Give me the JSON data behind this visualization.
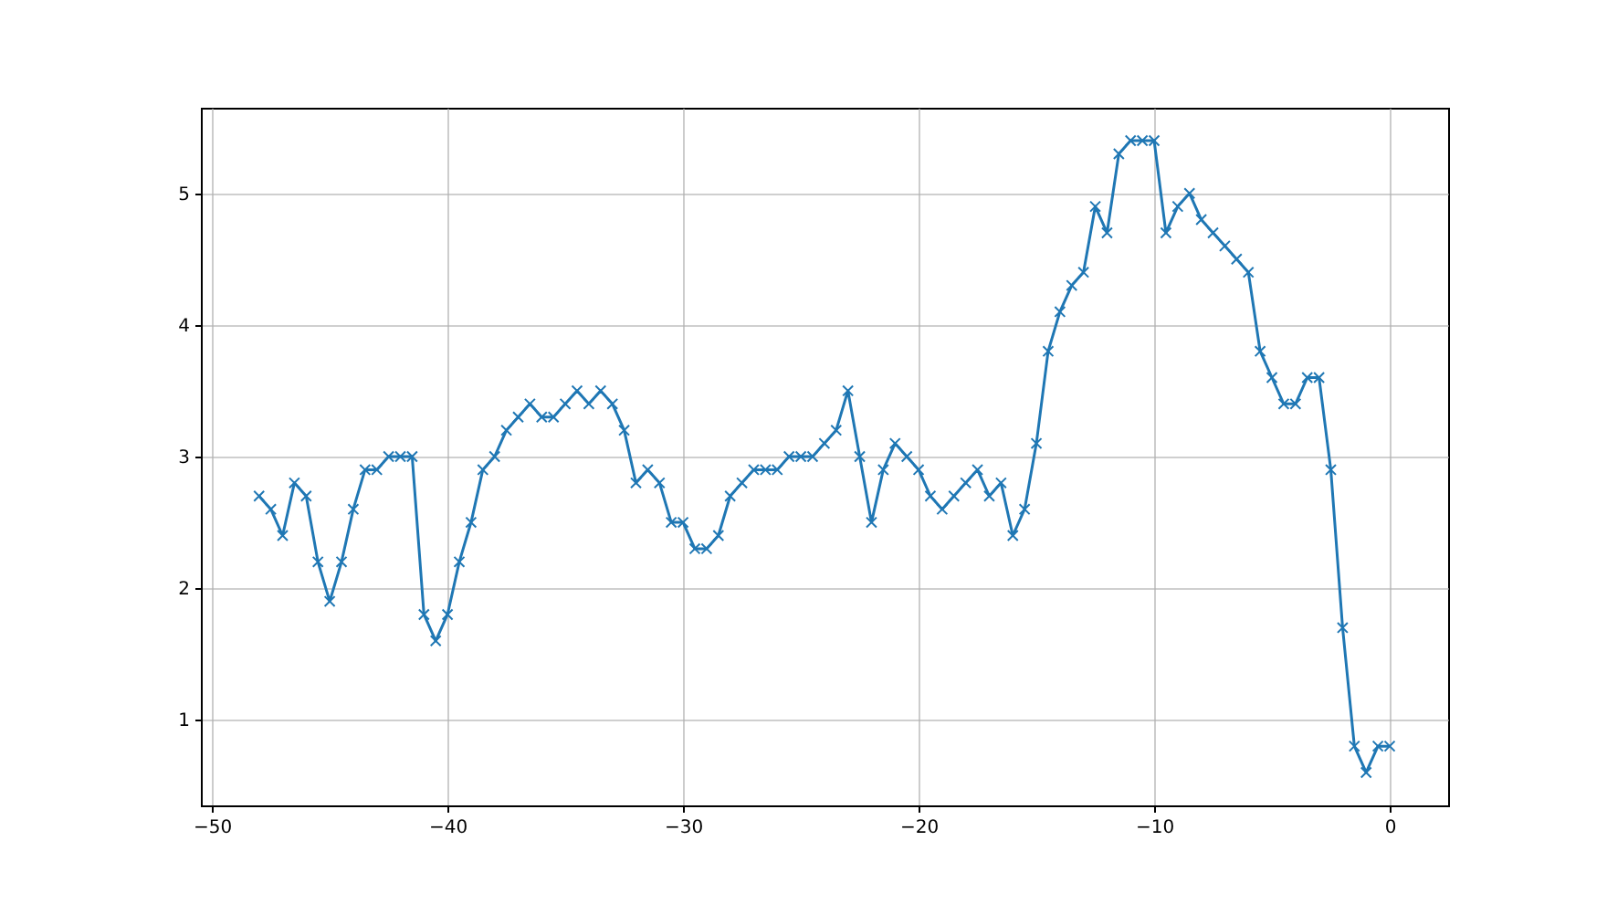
{
  "chart_data": {
    "type": "line",
    "x": [
      -48,
      -47.5,
      -47,
      -46.5,
      -46,
      -45.5,
      -45,
      -44.5,
      -44,
      -43.5,
      -43,
      -42.5,
      -42,
      -41.5,
      -41,
      -40.5,
      -40,
      -39.5,
      -39,
      -38.5,
      -38,
      -37.5,
      -37,
      -36.5,
      -36,
      -35.5,
      -35,
      -34.5,
      -34,
      -33.5,
      -33,
      -32.5,
      -32,
      -31.5,
      -31,
      -30.5,
      -30,
      -29.5,
      -29,
      -28.5,
      -28,
      -27.5,
      -27,
      -26.5,
      -26,
      -25.5,
      -25,
      -24.5,
      -24,
      -23.5,
      -23,
      -22.5,
      -22,
      -21.5,
      -21,
      -20.5,
      -20,
      -19.5,
      -19,
      -18.5,
      -18,
      -17.5,
      -17,
      -16.5,
      -16,
      -15.5,
      -15,
      -14.5,
      -14,
      -13.5,
      -13,
      -12.5,
      -12,
      -11.5,
      -11,
      -10.5,
      -10,
      -9.5,
      -9,
      -8.5,
      -8,
      -7.5,
      -7,
      -6.5,
      -6,
      -5.5,
      -5,
      -4.5,
      -4,
      -3.5,
      -3,
      -2.5,
      -2,
      -1.5,
      -1,
      -0.5,
      0
    ],
    "series": [
      {
        "color": "#1f77b4",
        "values": [
          2.7,
          2.6,
          2.4,
          2.8,
          2.7,
          2.2,
          1.9,
          2.2,
          2.6,
          2.9,
          2.9,
          3.0,
          3.0,
          3.0,
          1.8,
          1.6,
          1.8,
          2.2,
          2.5,
          2.9,
          3.0,
          3.2,
          3.3,
          3.4,
          3.3,
          3.3,
          3.4,
          3.5,
          3.4,
          3.5,
          3.4,
          3.2,
          2.8,
          2.9,
          2.8,
          2.5,
          2.5,
          2.3,
          2.3,
          2.4,
          2.7,
          2.8,
          2.9,
          2.9,
          2.9,
          3.0,
          3.0,
          3.0,
          3.1,
          3.2,
          3.5,
          3.0,
          2.5,
          2.9,
          3.1,
          3.0,
          2.9,
          2.7,
          2.6,
          2.7,
          2.8,
          2.9,
          2.7,
          2.8,
          2.4,
          2.6,
          3.1,
          3.8,
          4.1,
          4.3,
          4.4,
          4.9,
          4.7,
          5.3,
          5.4,
          5.4,
          5.4,
          4.7,
          4.9,
          5.0,
          4.8,
          4.7,
          4.6,
          4.5,
          4.4,
          3.8,
          3.6,
          3.4,
          3.4,
          3.6,
          3.6,
          2.9,
          1.7,
          0.8,
          0.6,
          0.8,
          0.8
        ]
      }
    ],
    "xlim": [
      -50.47,
      2.48
    ],
    "ylim": [
      0.35,
      5.65
    ],
    "xticks": [
      -50,
      -40,
      -30,
      -20,
      -10,
      0
    ],
    "yticks": [
      1,
      2,
      3,
      4,
      5
    ],
    "grid": true,
    "marker": "cross",
    "line_style": "solid"
  }
}
